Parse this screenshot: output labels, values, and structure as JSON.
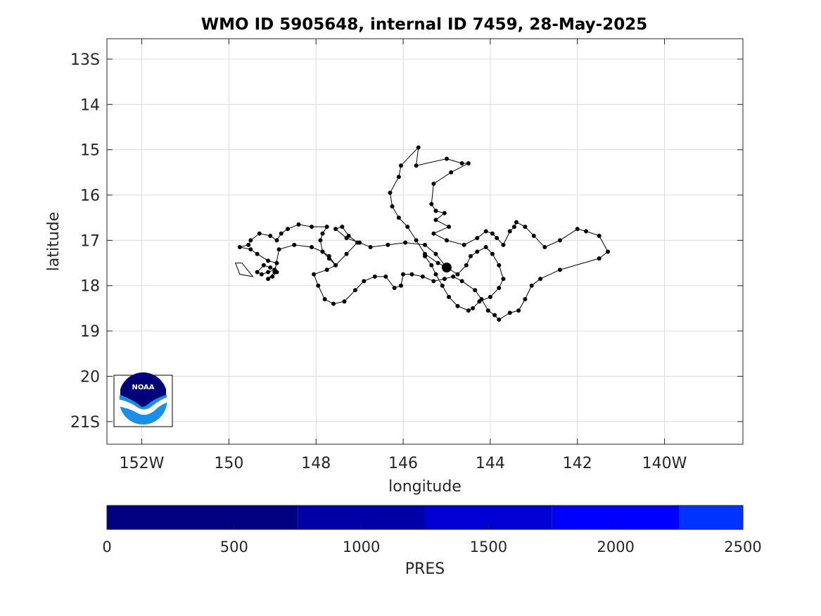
{
  "chart_data": {
    "type": "scatter",
    "title": "WMO ID 5905648, internal ID 7459, 28-May-2025",
    "xlabel": "longitude",
    "ylabel": "latitude",
    "xlim": [
      -152.8,
      -138.2
    ],
    "ylim": [
      -21.5,
      -12.55
    ],
    "x_ticks": [
      -152,
      -150,
      -148,
      -146,
      -144,
      -142,
      -140
    ],
    "x_tick_labels": [
      "152W",
      "150",
      "148",
      "146",
      "144",
      "142",
      "140W"
    ],
    "y_ticks": [
      -13,
      -14,
      -15,
      -16,
      -17,
      -18,
      -19,
      -20,
      -21
    ],
    "y_tick_labels": [
      "13S",
      "14",
      "15",
      "16",
      "17",
      "18",
      "19",
      "20",
      "21S"
    ],
    "grid": true,
    "line_color": "#000000",
    "marker_color": "#000000",
    "last_position": [
      -145.0,
      -17.6
    ],
    "track": [
      [
        -145.0,
        -17.6
      ],
      [
        -145.2,
        -17.5
      ],
      [
        -145.5,
        -17.3
      ],
      [
        -145.7,
        -17.0
      ],
      [
        -145.9,
        -16.7
      ],
      [
        -146.1,
        -16.5
      ],
      [
        -146.25,
        -16.25
      ],
      [
        -146.3,
        -15.95
      ],
      [
        -146.1,
        -15.6
      ],
      [
        -146.05,
        -15.35
      ],
      [
        -145.65,
        -14.95
      ],
      [
        -145.7,
        -15.35
      ],
      [
        -145.0,
        -15.2
      ],
      [
        -144.65,
        -15.3
      ],
      [
        -144.5,
        -15.3
      ],
      [
        -144.9,
        -15.5
      ],
      [
        -145.3,
        -15.75
      ],
      [
        -145.35,
        -16.2
      ],
      [
        -145.25,
        -16.35
      ],
      [
        -145.05,
        -16.4
      ],
      [
        -145.25,
        -16.55
      ],
      [
        -144.95,
        -16.7
      ],
      [
        -145.3,
        -16.85
      ],
      [
        -145.0,
        -17.0
      ],
      [
        -144.6,
        -17.1
      ],
      [
        -144.3,
        -16.95
      ],
      [
        -144.1,
        -16.8
      ],
      [
        -143.95,
        -16.85
      ],
      [
        -143.85,
        -16.95
      ],
      [
        -143.7,
        -17.1
      ],
      [
        -143.55,
        -16.8
      ],
      [
        -143.45,
        -16.7
      ],
      [
        -143.4,
        -16.6
      ],
      [
        -143.2,
        -16.7
      ],
      [
        -143.0,
        -16.9
      ],
      [
        -142.75,
        -17.15
      ],
      [
        -142.4,
        -17.0
      ],
      [
        -142.0,
        -16.75
      ],
      [
        -141.8,
        -16.8
      ],
      [
        -141.5,
        -16.9
      ],
      [
        -141.3,
        -17.25
      ],
      [
        -141.5,
        -17.4
      ],
      [
        -142.4,
        -17.65
      ],
      [
        -142.85,
        -17.85
      ],
      [
        -143.05,
        -18.0
      ],
      [
        -143.2,
        -18.3
      ],
      [
        -143.35,
        -18.55
      ],
      [
        -143.55,
        -18.6
      ],
      [
        -143.8,
        -18.75
      ],
      [
        -143.9,
        -18.65
      ],
      [
        -144.05,
        -18.55
      ],
      [
        -144.2,
        -18.3
      ],
      [
        -144.35,
        -18.1
      ],
      [
        -144.65,
        -17.9
      ],
      [
        -144.85,
        -17.8
      ],
      [
        -145.05,
        -17.85
      ],
      [
        -145.3,
        -17.9
      ],
      [
        -145.55,
        -17.8
      ],
      [
        -145.8,
        -17.75
      ],
      [
        -146.0,
        -17.75
      ],
      [
        -146.05,
        -18.0
      ],
      [
        -146.2,
        -18.05
      ],
      [
        -146.4,
        -17.8
      ],
      [
        -146.65,
        -17.8
      ],
      [
        -146.9,
        -17.9
      ],
      [
        -147.1,
        -18.1
      ],
      [
        -147.35,
        -18.35
      ],
      [
        -147.6,
        -18.4
      ],
      [
        -147.8,
        -18.3
      ],
      [
        -147.95,
        -18.0
      ],
      [
        -148.05,
        -17.75
      ],
      [
        -147.75,
        -17.65
      ],
      [
        -147.55,
        -17.55
      ],
      [
        -147.7,
        -17.4
      ],
      [
        -147.85,
        -17.25
      ],
      [
        -147.9,
        -17.0
      ],
      [
        -147.85,
        -16.85
      ],
      [
        -147.75,
        -16.7
      ],
      [
        -148.1,
        -16.7
      ],
      [
        -148.4,
        -16.65
      ],
      [
        -148.65,
        -16.75
      ],
      [
        -148.8,
        -16.85
      ],
      [
        -148.9,
        -17.0
      ],
      [
        -149.05,
        -16.9
      ],
      [
        -149.3,
        -16.85
      ],
      [
        -149.5,
        -17.0
      ],
      [
        -149.55,
        -17.1
      ],
      [
        -149.75,
        -17.15
      ],
      [
        -149.5,
        -17.2
      ],
      [
        -149.35,
        -17.3
      ],
      [
        -149.1,
        -17.45
      ],
      [
        -148.9,
        -17.5
      ],
      [
        -148.95,
        -17.65
      ],
      [
        -149.1,
        -17.7
      ],
      [
        -149.25,
        -17.75
      ],
      [
        -149.35,
        -17.7
      ],
      [
        -149.2,
        -17.55
      ],
      [
        -149.05,
        -17.6
      ],
      [
        -148.9,
        -17.7
      ],
      [
        -149.0,
        -17.8
      ],
      [
        -149.1,
        -17.85
      ],
      [
        -148.95,
        -17.7
      ],
      [
        -148.85,
        -17.2
      ],
      [
        -148.5,
        -17.1
      ],
      [
        -148.1,
        -17.15
      ],
      [
        -147.85,
        -17.25
      ],
      [
        -147.7,
        -17.35
      ],
      [
        -147.55,
        -17.55
      ],
      [
        -147.3,
        -17.3
      ],
      [
        -147.05,
        -17.05
      ],
      [
        -147.25,
        -16.9
      ],
      [
        -147.4,
        -16.7
      ],
      [
        -147.55,
        -16.75
      ],
      [
        -147.3,
        -16.95
      ],
      [
        -147.0,
        -17.05
      ],
      [
        -146.75,
        -17.15
      ],
      [
        -146.35,
        -17.1
      ],
      [
        -145.95,
        -17.05
      ],
      [
        -145.5,
        -17.1
      ],
      [
        -145.25,
        -17.3
      ],
      [
        -145.0,
        -17.6
      ],
      [
        -144.75,
        -17.75
      ],
      [
        -144.55,
        -17.55
      ],
      [
        -144.45,
        -17.35
      ],
      [
        -144.3,
        -17.25
      ],
      [
        -144.1,
        -17.15
      ],
      [
        -143.95,
        -17.3
      ],
      [
        -143.8,
        -17.55
      ],
      [
        -143.7,
        -17.85
      ],
      [
        -143.8,
        -18.05
      ],
      [
        -144.0,
        -18.25
      ],
      [
        -144.25,
        -18.35
      ],
      [
        -144.4,
        -18.5
      ],
      [
        -144.5,
        -18.55
      ],
      [
        -144.75,
        -18.45
      ],
      [
        -144.95,
        -18.25
      ],
      [
        -145.1,
        -18.0
      ],
      [
        -145.25,
        -17.75
      ],
      [
        -145.35,
        -17.55
      ],
      [
        -145.5,
        -17.35
      ]
    ],
    "float_outline": [
      [
        -149.85,
        -17.5
      ],
      [
        -149.7,
        -17.5
      ],
      [
        -149.45,
        -17.8
      ],
      [
        -149.75,
        -17.75
      ]
    ]
  },
  "colorbar": {
    "label": "PRES",
    "min": 0,
    "max": 2500,
    "ticks": [
      "0",
      "500",
      "1000",
      "1500",
      "2000",
      "2500"
    ],
    "segments": [
      {
        "from": 0,
        "to": 750,
        "color": "#000080"
      },
      {
        "from": 750,
        "to": 1250,
        "color": "#0000a8"
      },
      {
        "from": 1250,
        "to": 1750,
        "color": "#0000d4"
      },
      {
        "from": 1750,
        "to": 2250,
        "color": "#0000ff"
      },
      {
        "from": 2250,
        "to": 2500,
        "color": "#0033ff"
      }
    ]
  },
  "logo": {
    "text": "NOAA",
    "colors": {
      "navy": "#00007a",
      "sky": "#1a8fe6",
      "white": "#ffffff"
    }
  }
}
